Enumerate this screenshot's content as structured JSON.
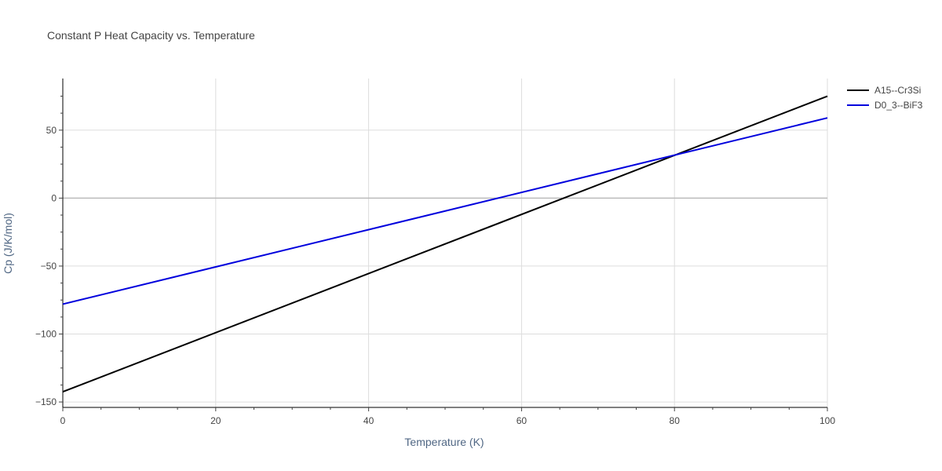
{
  "chart_data": {
    "type": "line",
    "title": "Constant P Heat Capacity vs. Temperature",
    "xlabel": "Temperature (K)",
    "ylabel": "Cp (J/K/mol)",
    "xlim": [
      0,
      100
    ],
    "ylim": [
      -154,
      88
    ],
    "x_ticks": [
      0,
      20,
      40,
      60,
      80,
      100
    ],
    "y_ticks": [
      -150,
      -100,
      -50,
      0,
      50
    ],
    "x_tick_labels": [
      "0",
      "20",
      "40",
      "60",
      "80",
      "100"
    ],
    "y_tick_labels": [
      "−150",
      "−100",
      "−50",
      "0",
      "50"
    ],
    "grid": true,
    "legend_position": "top-right",
    "series": [
      {
        "name": "A15--Cr3Si",
        "color": "#000000",
        "x": [
          0,
          100
        ],
        "y": [
          -142.5,
          75
        ]
      },
      {
        "name": "D0_3--BiF3",
        "color": "#0000dd",
        "x": [
          0,
          100
        ],
        "y": [
          -78,
          59
        ]
      }
    ]
  }
}
